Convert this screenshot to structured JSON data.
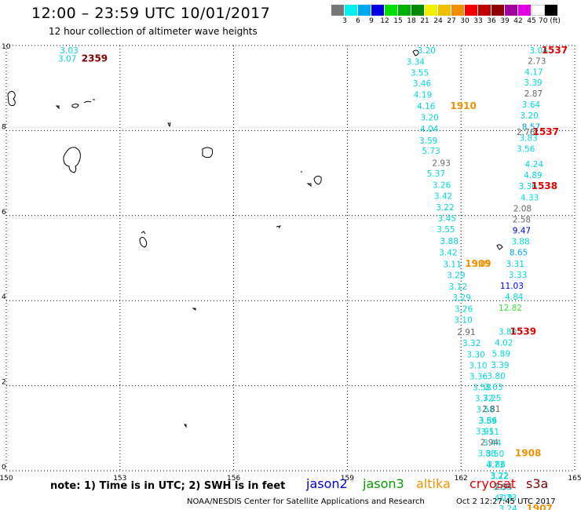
{
  "header": {
    "title": "12:00 – 23:59 UTC 10/01/2017",
    "subtitle": "12 hour collection of altimeter wave heights"
  },
  "colorbar": {
    "labels": [
      "3",
      "6",
      "9",
      "12",
      "15",
      "18",
      "21",
      "24",
      "27",
      "30",
      "33",
      "36",
      "39",
      "42",
      "45",
      "70 (ft)"
    ],
    "colors": [
      "#777777",
      "#00f0f0",
      "#00a8f0",
      "#0000e0",
      "#00e000",
      "#00b000",
      "#008800",
      "#f0f000",
      "#f0c000",
      "#f09000",
      "#f00000",
      "#c00000",
      "#900000",
      "#a000a0",
      "#e000e0",
      "#ffffff",
      "#000000"
    ]
  },
  "axes": {
    "x": {
      "min": 150,
      "max": 165,
      "ticks": [
        150,
        153,
        156,
        159,
        162,
        165
      ],
      "tick_labels": [
        "150",
        "153",
        "156",
        "159",
        "162",
        "165"
      ]
    },
    "y": {
      "min": 0,
      "max": 10,
      "ticks": [
        0,
        2,
        4,
        6,
        8,
        10
      ],
      "tick_labels": [
        "0",
        "2",
        "4",
        "6",
        "8",
        "10"
      ]
    },
    "grid": true
  },
  "observations": [
    {
      "lon": 151.66,
      "lat": 9.82,
      "label": "3.03",
      "color": "#00d8d8"
    },
    {
      "lon": 151.61,
      "lat": 9.62,
      "label": "3.07",
      "color": "#00d8d8"
    },
    {
      "lon": 161.09,
      "lat": 9.82,
      "label": "3.20",
      "color": "#00d8d8"
    },
    {
      "lon": 160.8,
      "lat": 9.55,
      "label": "3.34",
      "color": "#00d8d8"
    },
    {
      "lon": 160.91,
      "lat": 9.29,
      "label": "3.55",
      "color": "#00d8d8"
    },
    {
      "lon": 160.97,
      "lat": 9.04,
      "label": "3.46",
      "color": "#00d8d8"
    },
    {
      "lon": 160.99,
      "lat": 8.77,
      "label": "4.19",
      "color": "#00d8d8"
    },
    {
      "lon": 161.08,
      "lat": 8.51,
      "label": "4.16",
      "color": "#00d8d8"
    },
    {
      "lon": 161.17,
      "lat": 8.24,
      "label": "3.20",
      "color": "#00d8d8"
    },
    {
      "lon": 161.16,
      "lat": 7.97,
      "label": "4.04",
      "color": "#00d8d8"
    },
    {
      "lon": 161.14,
      "lat": 7.69,
      "label": "3.59",
      "color": "#00d8d8"
    },
    {
      "lon": 161.21,
      "lat": 7.45,
      "label": "5.73",
      "color": "#00d8d8"
    },
    {
      "lon": 161.48,
      "lat": 7.17,
      "label": "2.93",
      "color": "#666666"
    },
    {
      "lon": 161.34,
      "lat": 6.92,
      "label": "5.37",
      "color": "#00d8d8"
    },
    {
      "lon": 161.49,
      "lat": 6.65,
      "label": "3.26",
      "color": "#00d8d8"
    },
    {
      "lon": 161.53,
      "lat": 6.39,
      "label": "3.42",
      "color": "#00d8d8"
    },
    {
      "lon": 161.58,
      "lat": 6.13,
      "label": "3.22",
      "color": "#00d8d8"
    },
    {
      "lon": 161.63,
      "lat": 5.87,
      "label": "3.45",
      "color": "#00d8d8"
    },
    {
      "lon": 161.6,
      "lat": 5.61,
      "label": "3.55",
      "color": "#00d8d8"
    },
    {
      "lon": 161.69,
      "lat": 5.33,
      "label": "3.88",
      "color": "#00d8d8"
    },
    {
      "lon": 161.66,
      "lat": 5.06,
      "label": "3.42",
      "color": "#00d8d8"
    },
    {
      "lon": 161.77,
      "lat": 4.79,
      "label": "3.11",
      "color": "#00d8d8"
    },
    {
      "lon": 161.87,
      "lat": 4.53,
      "label": "3.29",
      "color": "#00d8d8"
    },
    {
      "lon": 161.92,
      "lat": 4.26,
      "label": "3.12",
      "color": "#00d8d8"
    },
    {
      "lon": 162.02,
      "lat": 4.0,
      "label": "3.29",
      "color": "#00d8d8"
    },
    {
      "lon": 162.07,
      "lat": 3.74,
      "label": "3.26",
      "color": "#00d8d8"
    },
    {
      "lon": 162.06,
      "lat": 3.48,
      "label": "3.10",
      "color": "#00d8d8"
    },
    {
      "lon": 162.14,
      "lat": 3.19,
      "label": "2.91",
      "color": "#666666"
    },
    {
      "lon": 162.28,
      "lat": 2.93,
      "label": "3.32",
      "color": "#00d8d8"
    },
    {
      "lon": 162.39,
      "lat": 2.67,
      "label": "3.30",
      "color": "#00d8d8"
    },
    {
      "lon": 162.45,
      "lat": 2.41,
      "label": "3.10",
      "color": "#00d8d8"
    },
    {
      "lon": 162.46,
      "lat": 2.15,
      "label": "3.36",
      "color": "#00d8d8"
    },
    {
      "lon": 162.55,
      "lat": 1.89,
      "label": "3.58",
      "color": "#00d8d8"
    },
    {
      "lon": 162.61,
      "lat": 1.63,
      "label": "3.72",
      "color": "#00d8d8"
    },
    {
      "lon": 162.64,
      "lat": 1.37,
      "label": "3.58",
      "color": "#00d8d8"
    },
    {
      "lon": 162.7,
      "lat": 1.11,
      "label": "3.59",
      "color": "#00d8d8"
    },
    {
      "lon": 162.77,
      "lat": 0.85,
      "label": "3.51",
      "color": "#00d8d8"
    },
    {
      "lon": 162.82,
      "lat": 0.59,
      "label": "3.44",
      "color": "#00d8d8"
    },
    {
      "lon": 162.9,
      "lat": 0.33,
      "label": "3.50",
      "color": "#00d8d8"
    },
    {
      "lon": 162.9,
      "lat": 0.07,
      "label": "4.73",
      "color": "#00d8d8"
    },
    {
      "lon": 163.02,
      "lat": -0.19,
      "label": "3.72",
      "color": "#00d8d8"
    },
    {
      "lon": 163.08,
      "lat": -0.45,
      "label": "3.86",
      "color": "#00d8d8"
    },
    {
      "lon": 163.12,
      "lat": -0.71,
      "label": "4.18",
      "color": "#00d8d8"
    },
    {
      "lon": 164.05,
      "lat": 9.82,
      "label": "3.04",
      "color": "#00d8d8"
    },
    {
      "lon": 164.0,
      "lat": 9.57,
      "label": "2.73",
      "color": "#666666"
    },
    {
      "lon": 163.92,
      "lat": 9.31,
      "label": "4.17",
      "color": "#00d8d8"
    },
    {
      "lon": 163.9,
      "lat": 9.06,
      "label": "3.39",
      "color": "#00d8d8"
    },
    {
      "lon": 163.91,
      "lat": 8.8,
      "label": "2.87",
      "color": "#666666"
    },
    {
      "lon": 163.85,
      "lat": 8.54,
      "label": "3.64",
      "color": "#00d8d8"
    },
    {
      "lon": 163.8,
      "lat": 8.28,
      "label": "3.20",
      "color": "#00d8d8"
    },
    {
      "lon": 163.85,
      "lat": 8.02,
      "label": "8.57",
      "color": "#00a8f0"
    },
    {
      "lon": 163.78,
      "lat": 7.76,
      "label": "3.83",
      "color": "#00d8d8"
    },
    {
      "lon": 163.71,
      "lat": 7.5,
      "label": "3.56",
      "color": "#00d8d8"
    },
    {
      "lon": 163.71,
      "lat": 7.9,
      "label": "2.76",
      "color": "#666666"
    },
    {
      "lon": 163.93,
      "lat": 7.14,
      "label": "4.24",
      "color": "#00d8d8"
    },
    {
      "lon": 163.9,
      "lat": 6.88,
      "label": "4.89",
      "color": "#00d8d8"
    },
    {
      "lon": 163.76,
      "lat": 6.62,
      "label": "3.36",
      "color": "#00d8d8"
    },
    {
      "lon": 163.81,
      "lat": 6.36,
      "label": "4.33",
      "color": "#00d8d8"
    },
    {
      "lon": 163.62,
      "lat": 6.1,
      "label": "2.08",
      "color": "#666666"
    },
    {
      "lon": 163.6,
      "lat": 5.84,
      "label": "2.58",
      "color": "#666666"
    },
    {
      "lon": 163.6,
      "lat": 5.58,
      "label": "9.47",
      "color": "#0000e0"
    },
    {
      "lon": 163.57,
      "lat": 5.32,
      "label": "3.88",
      "color": "#00d8d8"
    },
    {
      "lon": 163.52,
      "lat": 5.06,
      "label": "8.65",
      "color": "#00a8f0"
    },
    {
      "lon": 163.43,
      "lat": 4.8,
      "label": "3.31",
      "color": "#00d8d8"
    },
    {
      "lon": 163.5,
      "lat": 4.54,
      "label": "3.33",
      "color": "#00d8d8"
    },
    {
      "lon": 163.34,
      "lat": 4.28,
      "label": "11.03",
      "color": "#0000e0"
    },
    {
      "lon": 163.4,
      "lat": 4.02,
      "label": "4.84",
      "color": "#00d8d8"
    },
    {
      "lon": 163.3,
      "lat": 3.76,
      "label": "12.82",
      "color": "#40e040"
    },
    {
      "lon": 163.23,
      "lat": 3.2,
      "label": "3.80",
      "color": "#00d8d8"
    },
    {
      "lon": 163.13,
      "lat": 2.94,
      "label": "4.02",
      "color": "#00d8d8"
    },
    {
      "lon": 163.06,
      "lat": 2.68,
      "label": "5.89",
      "color": "#00d8d8"
    },
    {
      "lon": 163.03,
      "lat": 2.42,
      "label": "3.39",
      "color": "#00d8d8"
    },
    {
      "lon": 162.93,
      "lat": 2.16,
      "label": "3.80",
      "color": "#00d8d8"
    },
    {
      "lon": 162.86,
      "lat": 1.9,
      "label": "3.63",
      "color": "#00d8d8"
    },
    {
      "lon": 162.82,
      "lat": 1.64,
      "label": "3.25",
      "color": "#00d8d8"
    },
    {
      "lon": 162.8,
      "lat": 1.38,
      "label": "2.81",
      "color": "#666666"
    },
    {
      "lon": 162.71,
      "lat": 1.12,
      "label": "3.86",
      "color": "#00d8d8"
    },
    {
      "lon": 162.63,
      "lat": 0.86,
      "label": "3.91",
      "color": "#00d8d8"
    },
    {
      "lon": 162.75,
      "lat": 0.6,
      "label": "2.94",
      "color": "#666666"
    },
    {
      "lon": 162.68,
      "lat": 0.34,
      "label": "3.88",
      "color": "#00d8d8"
    },
    {
      "lon": 162.93,
      "lat": 0.08,
      "label": "3.88",
      "color": "#00d8d8"
    },
    {
      "lon": 163.01,
      "lat": -0.18,
      "label": "3.22",
      "color": "#00d8d8"
    },
    {
      "lon": 163.12,
      "lat": -0.44,
      "label": "2.94",
      "color": "#666666"
    },
    {
      "lon": 163.23,
      "lat": -0.7,
      "label": "3.73",
      "color": "#00d8d8"
    },
    {
      "lon": 163.24,
      "lat": -0.96,
      "label": "3.24",
      "color": "#00d8d8"
    },
    {
      "lon": 162.55,
      "lat": 4.8,
      "label": "3.09",
      "color": "#f09000"
    }
  ],
  "time_markers": [
    {
      "lon": 152.33,
      "lat": 9.62,
      "label": "2359",
      "color": "#800000"
    },
    {
      "lon": 164.47,
      "lat": 9.82,
      "label": "1537",
      "color": "#e00000"
    },
    {
      "lon": 162.06,
      "lat": 8.51,
      "label": "1910",
      "color": "#f09000"
    },
    {
      "lon": 164.24,
      "lat": 7.9,
      "label": "1537",
      "color": "#e00000"
    },
    {
      "lon": 164.2,
      "lat": 6.62,
      "label": "1538",
      "color": "#e00000"
    },
    {
      "lon": 163.64,
      "lat": 3.2,
      "label": "1539",
      "color": "#e00000"
    },
    {
      "lon": 163.77,
      "lat": 0.34,
      "label": "1908",
      "color": "#f09000"
    },
    {
      "lon": 164.07,
      "lat": -0.96,
      "label": "1907",
      "color": "#f09000"
    },
    {
      "lon": 162.45,
      "lat": 4.8,
      "label": "1909",
      "color": "#f09000"
    }
  ],
  "footer": {
    "note": "note:  1) Time is in UTC;  2) SWH is in feet",
    "satellites": [
      {
        "name": "jason2",
        "color": "#0000e0"
      },
      {
        "name": "jason3",
        "color": "#00a000"
      },
      {
        "name": "altika",
        "color": "#f09000"
      },
      {
        "name": "cryosat",
        "color": "#e00000"
      },
      {
        "name": "s3a",
        "color": "#800000"
      }
    ],
    "credit": "NOAA/NESDIS Center for Satellite Applications and Research",
    "timestamp": "Oct  2 12:27:45 UTC 2017"
  }
}
